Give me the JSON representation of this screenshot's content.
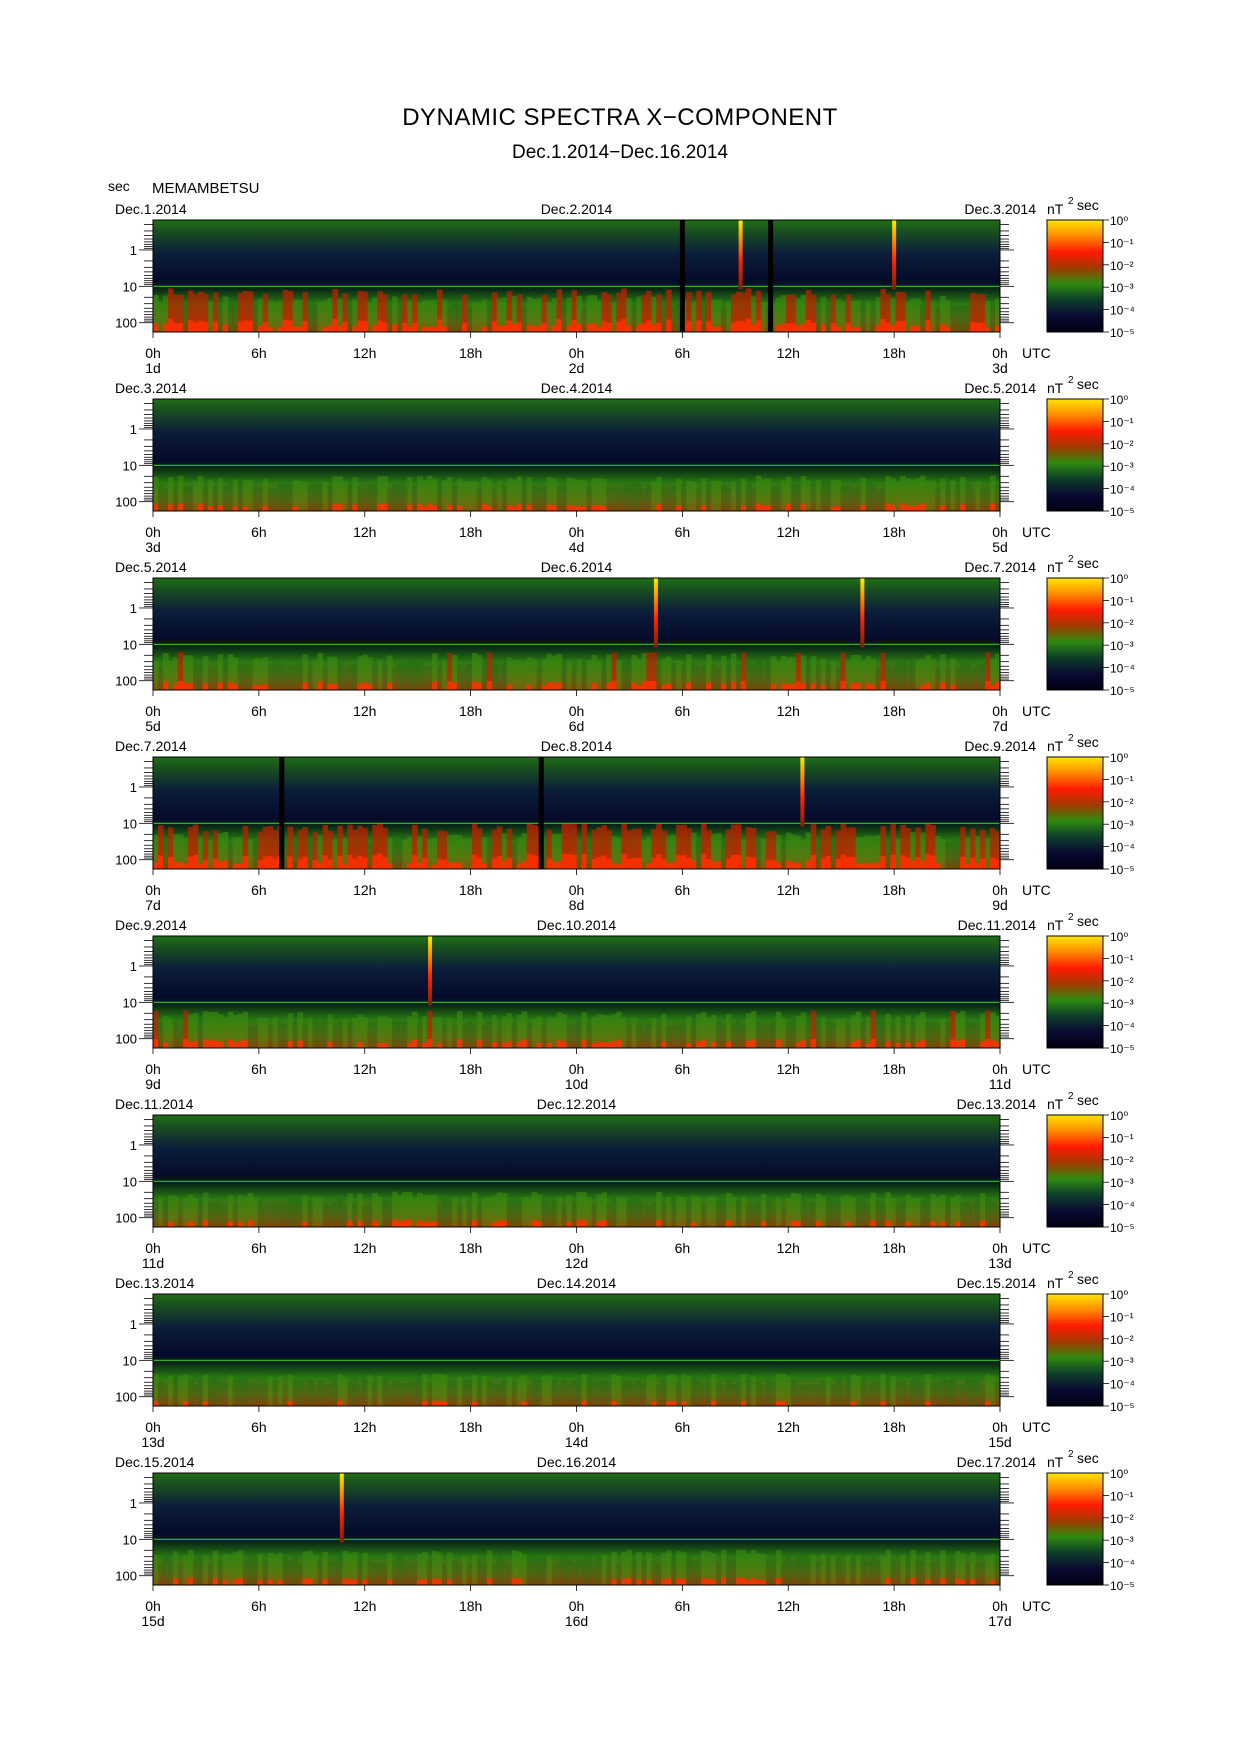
{
  "title": "DYNAMIC SPECTRA X−COMPONENT",
  "subtitle": "Dec.1.2014−Dec.16.2014",
  "station": "MEMAMBETSU",
  "y_unit": "sec",
  "colorbar_unit": "nT",
  "colorbar_unit_exp": "2",
  "colorbar_unit_suffix": "sec",
  "x_unit": "UTC",
  "chart_data": {
    "type": "heatmap",
    "title": "DYNAMIC SPECTRA X−COMPONENT",
    "subtitle": "Dec.1.2014−Dec.16.2014",
    "ylabel": "sec",
    "y_scale": "log",
    "y_ticks": [
      "1",
      "10",
      "100"
    ],
    "x_ticks": [
      "0h",
      "6h",
      "12h",
      "18h",
      "0h",
      "6h",
      "12h",
      "18h",
      "0h"
    ],
    "x_unit": "UTC",
    "colorbar": {
      "scale": "log",
      "unit": "nT²sec",
      "ticks": [
        "10⁰",
        "10⁻¹",
        "10⁻²",
        "10⁻³",
        "10⁻⁴",
        "10⁻⁵"
      ],
      "colors": [
        "#ffe600",
        "#ff8a00",
        "#ff1a00",
        "#a03a00",
        "#2e8a10",
        "#0d3d2a",
        "#0a0a33",
        "#000010"
      ]
    },
    "panels": [
      {
        "dates": [
          "Dec.1.2014",
          "Dec.2.2014",
          "Dec.3.2014"
        ],
        "days": [
          "1d",
          "2d",
          "3d"
        ],
        "level": 0.55,
        "spikes": [
          33.3,
          42.0
        ],
        "gaps": [
          30.0,
          35.0
        ]
      },
      {
        "dates": [
          "Dec.3.2014",
          "Dec.4.2014",
          "Dec.5.2014"
        ],
        "days": [
          "3d",
          "4d",
          "5d"
        ],
        "level": 0.4,
        "spikes": [],
        "gaps": []
      },
      {
        "dates": [
          "Dec.5.2014",
          "Dec.6.2014",
          "Dec.7.2014"
        ],
        "days": [
          "5d",
          "6d",
          "7d"
        ],
        "level": 0.45,
        "spikes": [
          28.5,
          40.2
        ],
        "gaps": []
      },
      {
        "dates": [
          "Dec.7.2014",
          "Dec.8.2014",
          "Dec.9.2014"
        ],
        "days": [
          "7d",
          "8d",
          "9d"
        ],
        "level": 0.6,
        "spikes": [
          36.8
        ],
        "gaps": [
          7.3,
          22.0
        ]
      },
      {
        "dates": [
          "Dec.9.2014",
          "Dec.10.2014",
          "Dec.11.2014"
        ],
        "days": [
          "9d",
          "10d",
          "11d"
        ],
        "level": 0.45,
        "spikes": [
          15.7
        ],
        "gaps": []
      },
      {
        "dates": [
          "Dec.11.2014",
          "Dec.12.2014",
          "Dec.13.2014"
        ],
        "days": [
          "11d",
          "12d",
          "13d"
        ],
        "level": 0.4,
        "spikes": [],
        "gaps": []
      },
      {
        "dates": [
          "Dec.13.2014",
          "Dec.14.2014",
          "Dec.15.2014"
        ],
        "days": [
          "13d",
          "14d",
          "15d"
        ],
        "level": 0.35,
        "spikes": [],
        "gaps": []
      },
      {
        "dates": [
          "Dec.15.2014",
          "Dec.16.2014",
          "Dec.17.2014"
        ],
        "days": [
          "15d",
          "16d",
          "17d"
        ],
        "level": 0.4,
        "spikes": [
          10.7
        ],
        "gaps": []
      }
    ]
  }
}
